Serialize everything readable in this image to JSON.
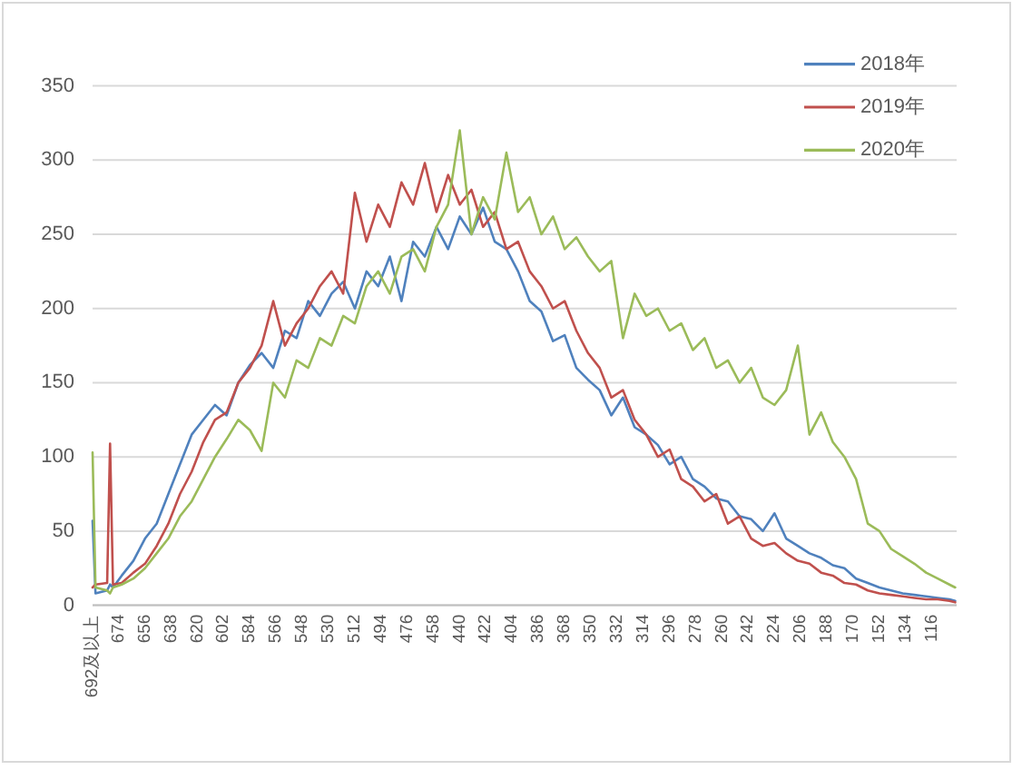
{
  "chart_data": {
    "type": "line",
    "x": [
      692,
      690,
      682,
      680,
      678,
      672,
      664,
      656,
      648,
      640,
      632,
      624,
      616,
      608,
      600,
      592,
      584,
      576,
      568,
      560,
      552,
      544,
      536,
      528,
      520,
      512,
      504,
      496,
      488,
      480,
      472,
      464,
      456,
      448,
      440,
      432,
      424,
      416,
      408,
      400,
      392,
      384,
      376,
      368,
      360,
      352,
      344,
      336,
      328,
      320,
      312,
      304,
      296,
      288,
      280,
      272,
      264,
      256,
      248,
      240,
      232,
      224,
      216,
      208,
      200,
      192,
      184,
      176,
      168,
      160,
      152,
      144,
      136,
      128,
      120,
      112,
      104,
      100
    ],
    "xlim": [
      692,
      99
    ],
    "xticks": [
      {
        "value": 692,
        "label": "692及以上"
      },
      674,
      656,
      638,
      620,
      602,
      584,
      566,
      548,
      530,
      512,
      494,
      476,
      458,
      440,
      422,
      404,
      386,
      368,
      350,
      332,
      314,
      296,
      278,
      260,
      242,
      224,
      206,
      188,
      170,
      152,
      134,
      116
    ],
    "ylim": [
      0,
      350
    ],
    "yticks": [
      0,
      50,
      100,
      150,
      200,
      250,
      300,
      350
    ],
    "grid": "y",
    "legend": "top right",
    "series": [
      {
        "name": "2018年",
        "color": "#4f81bd",
        "values": [
          57,
          8,
          10,
          14,
          12,
          20,
          30,
          45,
          55,
          75,
          95,
          115,
          125,
          135,
          128,
          150,
          162,
          170,
          160,
          185,
          180,
          205,
          195,
          210,
          218,
          200,
          225,
          215,
          235,
          205,
          245,
          235,
          255,
          240,
          262,
          250,
          268,
          245,
          240,
          225,
          205,
          198,
          178,
          182,
          160,
          152,
          145,
          128,
          140,
          120,
          115,
          108,
          95,
          100,
          85,
          80,
          72,
          70,
          60,
          58,
          50,
          62,
          45,
          40,
          35,
          32,
          27,
          25,
          18,
          15,
          12,
          10,
          8,
          7,
          6,
          5,
          4,
          3
        ]
      },
      {
        "name": "2019年",
        "color": "#c0504d",
        "values": [
          12,
          14,
          15,
          109,
          14,
          15,
          22,
          28,
          40,
          55,
          75,
          90,
          110,
          125,
          130,
          150,
          160,
          175,
          205,
          175,
          190,
          200,
          215,
          225,
          210,
          278,
          245,
          270,
          255,
          285,
          270,
          298,
          265,
          290,
          270,
          280,
          255,
          265,
          240,
          245,
          225,
          215,
          200,
          205,
          185,
          170,
          160,
          140,
          145,
          125,
          115,
          100,
          105,
          85,
          80,
          70,
          75,
          55,
          60,
          45,
          40,
          42,
          35,
          30,
          28,
          22,
          20,
          15,
          14,
          10,
          8,
          7,
          6,
          5,
          4,
          4,
          3,
          2
        ]
      },
      {
        "name": "2020年",
        "color": "#9bbb59",
        "values": [
          103,
          12,
          10,
          8,
          12,
          14,
          18,
          25,
          35,
          45,
          60,
          70,
          85,
          100,
          112,
          125,
          118,
          104,
          150,
          140,
          165,
          160,
          180,
          175,
          195,
          190,
          215,
          225,
          210,
          235,
          240,
          225,
          255,
          270,
          320,
          250,
          275,
          260,
          305,
          265,
          275,
          250,
          262,
          240,
          248,
          235,
          225,
          232,
          180,
          210,
          195,
          200,
          185,
          190,
          172,
          180,
          160,
          165,
          150,
          160,
          140,
          135,
          145,
          175,
          115,
          130,
          110,
          100,
          85,
          55,
          50,
          38,
          33,
          28,
          22,
          18,
          14,
          12
        ]
      }
    ]
  }
}
